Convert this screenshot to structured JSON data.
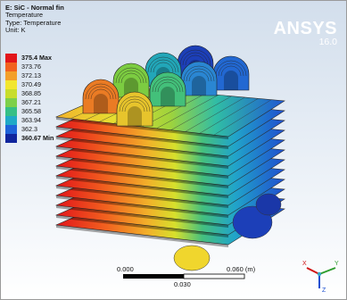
{
  "header": {
    "title": "E: SiC - Normal fin",
    "result": "Temperature",
    "type": "Type: Temperature",
    "unit": "Unit: K"
  },
  "brand": {
    "name": "ANSYS",
    "version": "16.0"
  },
  "legend": {
    "entries": [
      {
        "label": "375.4 Max",
        "color": "#e2151a",
        "emphasis": true
      },
      {
        "label": "373.76",
        "color": "#f2621f",
        "emphasis": false
      },
      {
        "label": "372.13",
        "color": "#f39f2a",
        "emphasis": false
      },
      {
        "label": "370.49",
        "color": "#f2e62f",
        "emphasis": false
      },
      {
        "label": "368.85",
        "color": "#c8dd2b",
        "emphasis": false
      },
      {
        "label": "367.21",
        "color": "#7dd04a",
        "emphasis": false
      },
      {
        "label": "365.58",
        "color": "#36bf86",
        "emphasis": false
      },
      {
        "label": "363.94",
        "color": "#20a9c7",
        "emphasis": false
      },
      {
        "label": "362.3",
        "color": "#1f63d9",
        "emphasis": false
      },
      {
        "label": "360.67 Min",
        "color": "#10259d",
        "emphasis": true
      }
    ]
  },
  "scale_bar": {
    "left_label": "0.000",
    "right_label": "0.060 (m)",
    "mid_label": "0.030"
  },
  "triad": {
    "x_label": "X",
    "y_label": "Y",
    "z_label": "Z"
  }
}
